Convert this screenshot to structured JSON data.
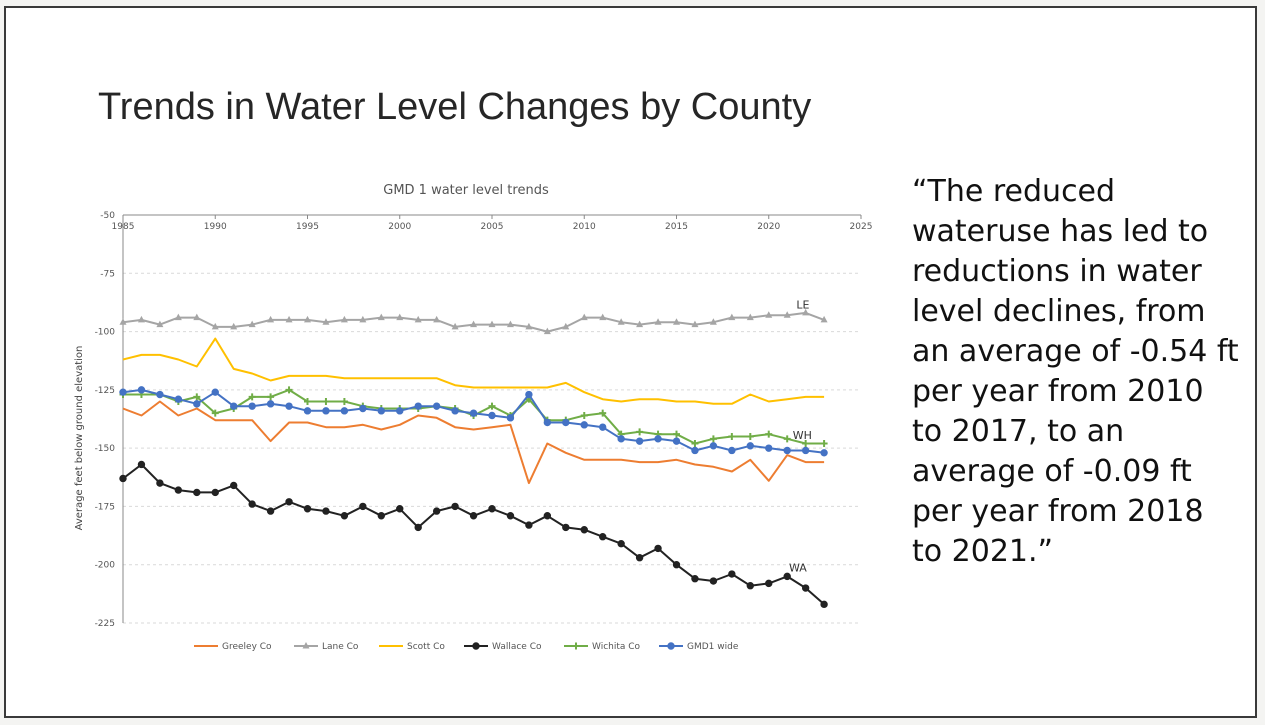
{
  "slide": {
    "title": "Trends in Water Level Changes by County",
    "quote": "“The reduced wateruse has led to reductions in water level declines, from an average of -0.54 ft per year from 2010 to 2017, to an average of -0.09 ft per year from 2018 to 2021.”"
  },
  "chart_data": {
    "type": "line",
    "title": "GMD 1 water level trends",
    "xlabel": "",
    "ylabel": "Average feet below ground elevation",
    "xlim": [
      1985,
      2025
    ],
    "ylim": [
      -225,
      -50
    ],
    "xticks": [
      1985,
      1990,
      1995,
      2000,
      2005,
      2010,
      2015,
      2020,
      2025
    ],
    "yticks": [
      -50,
      -75,
      -100,
      -125,
      -150,
      -175,
      -200,
      -225
    ],
    "grid": true,
    "legend_position": "bottom",
    "series": [
      {
        "name": "Greeley Co",
        "color": "#ed7d31",
        "marker": "none",
        "x": [
          1985,
          1986,
          1987,
          1988,
          1989,
          1990,
          1991,
          1992,
          1993,
          1994,
          1995,
          1996,
          1997,
          1998,
          1999,
          2000,
          2001,
          2002,
          2003,
          2004,
          2005,
          2006,
          2007,
          2008,
          2009,
          2010,
          2011,
          2012,
          2013,
          2014,
          2015,
          2016,
          2017,
          2018,
          2019,
          2020,
          2021,
          2022,
          2023
        ],
        "y": [
          -133,
          -136,
          -130,
          -136,
          -133,
          -138,
          -138,
          -138,
          -147,
          -139,
          -139,
          -141,
          -141,
          -140,
          -142,
          -140,
          -136,
          -137,
          -141,
          -142,
          -141,
          -140,
          -165,
          -148,
          -152,
          -155,
          -155,
          -155,
          -156,
          -156,
          -155,
          -157,
          -158,
          -160,
          -155,
          -164,
          -153,
          -156,
          -156
        ]
      },
      {
        "name": "Lane Co",
        "color": "#a5a5a5",
        "marker": "triangle",
        "x": [
          1985,
          1986,
          1987,
          1988,
          1989,
          1990,
          1991,
          1992,
          1993,
          1994,
          1995,
          1996,
          1997,
          1998,
          1999,
          2000,
          2001,
          2002,
          2003,
          2004,
          2005,
          2006,
          2007,
          2008,
          2009,
          2010,
          2011,
          2012,
          2013,
          2014,
          2015,
          2016,
          2017,
          2018,
          2019,
          2020,
          2021,
          2022,
          2023
        ],
        "y": [
          -96,
          -95,
          -97,
          -94,
          -94,
          -98,
          -98,
          -97,
          -95,
          -95,
          -95,
          -96,
          -95,
          -95,
          -94,
          -94,
          -95,
          -95,
          -98,
          -97,
          -97,
          -97,
          -98,
          -100,
          -98,
          -94,
          -94,
          -96,
          -97,
          -96,
          -96,
          -97,
          -96,
          -94,
          -94,
          -93,
          -93,
          -92,
          -95
        ]
      },
      {
        "name": "Scott Co",
        "color": "#ffc000",
        "marker": "none",
        "x": [
          1985,
          1986,
          1987,
          1988,
          1989,
          1990,
          1991,
          1992,
          1993,
          1994,
          1995,
          1996,
          1997,
          1998,
          1999,
          2000,
          2001,
          2002,
          2003,
          2004,
          2005,
          2006,
          2007,
          2008,
          2009,
          2010,
          2011,
          2012,
          2013,
          2014,
          2015,
          2016,
          2017,
          2018,
          2019,
          2020,
          2021,
          2022,
          2023
        ],
        "y": [
          -112,
          -110,
          -110,
          -112,
          -115,
          -103,
          -116,
          -118,
          -121,
          -119,
          -119,
          -119,
          -120,
          -120,
          -120,
          -120,
          -120,
          -120,
          -123,
          -124,
          -124,
          -124,
          -124,
          -124,
          -122,
          -126,
          -129,
          -130,
          -129,
          -129,
          -130,
          -130,
          -131,
          -131,
          -127,
          -130,
          -129,
          -128,
          -128
        ]
      },
      {
        "name": "Wallace Co",
        "color": "#222222",
        "marker": "circle",
        "x": [
          1985,
          1986,
          1987,
          1988,
          1989,
          1990,
          1991,
          1992,
          1993,
          1994,
          1995,
          1996,
          1997,
          1998,
          1999,
          2000,
          2001,
          2002,
          2003,
          2004,
          2005,
          2006,
          2007,
          2008,
          2009,
          2010,
          2011,
          2012,
          2013,
          2014,
          2015,
          2016,
          2017,
          2018,
          2019,
          2020,
          2021,
          2022,
          2023
        ],
        "y": [
          -163,
          -157,
          -165,
          -168,
          -169,
          -169,
          -166,
          -174,
          -177,
          -173,
          -176,
          -177,
          -179,
          -175,
          -179,
          -176,
          -184,
          -177,
          -175,
          -179,
          -176,
          -179,
          -183,
          -179,
          -184,
          -185,
          -188,
          -191,
          -197,
          -193,
          -200,
          -206,
          -207,
          -204,
          -209,
          -208,
          -205,
          -210,
          -217
        ]
      },
      {
        "name": "Wichita Co",
        "color": "#70ad47",
        "marker": "plus",
        "x": [
          1985,
          1986,
          1987,
          1988,
          1989,
          1990,
          1991,
          1992,
          1993,
          1994,
          1995,
          1996,
          1997,
          1998,
          1999,
          2000,
          2001,
          2002,
          2003,
          2004,
          2005,
          2006,
          2007,
          2008,
          2009,
          2010,
          2011,
          2012,
          2013,
          2014,
          2015,
          2016,
          2017,
          2018,
          2019,
          2020,
          2021,
          2022,
          2023
        ],
        "y": [
          -127,
          -127,
          -127,
          -130,
          -128,
          -135,
          -133,
          -128,
          -128,
          -125,
          -130,
          -130,
          -130,
          -132,
          -133,
          -133,
          -133,
          -132,
          -133,
          -136,
          -132,
          -136,
          -129,
          -138,
          -138,
          -136,
          -135,
          -144,
          -143,
          -144,
          -144,
          -148,
          -146,
          -145,
          -145,
          -144,
          -146,
          -148,
          -148
        ]
      },
      {
        "name": "GMD1 wide",
        "color": "#4472c4",
        "marker": "circle",
        "x": [
          1985,
          1986,
          1987,
          1988,
          1989,
          1990,
          1991,
          1992,
          1993,
          1994,
          1995,
          1996,
          1997,
          1998,
          1999,
          2000,
          2001,
          2002,
          2003,
          2004,
          2005,
          2006,
          2007,
          2008,
          2009,
          2010,
          2011,
          2012,
          2013,
          2014,
          2015,
          2016,
          2017,
          2018,
          2019,
          2020,
          2021,
          2022,
          2023
        ],
        "y": [
          -126,
          -125,
          -127,
          -129,
          -131,
          -126,
          -132,
          -132,
          -131,
          -132,
          -134,
          -134,
          -134,
          -133,
          -134,
          -134,
          -132,
          -132,
          -134,
          -135,
          -136,
          -137,
          -127,
          -139,
          -139,
          -140,
          -141,
          -146,
          -147,
          -146,
          -147,
          -151,
          -149,
          -151,
          -149,
          -150,
          -151,
          -151,
          -152
        ]
      }
    ],
    "annotations": [
      {
        "text": "LE",
        "x": 2021.5,
        "y": -90
      },
      {
        "text": "WH",
        "x": 2021.3,
        "y": -146
      },
      {
        "text": "WA",
        "x": 2021.1,
        "y": -203
      }
    ]
  }
}
